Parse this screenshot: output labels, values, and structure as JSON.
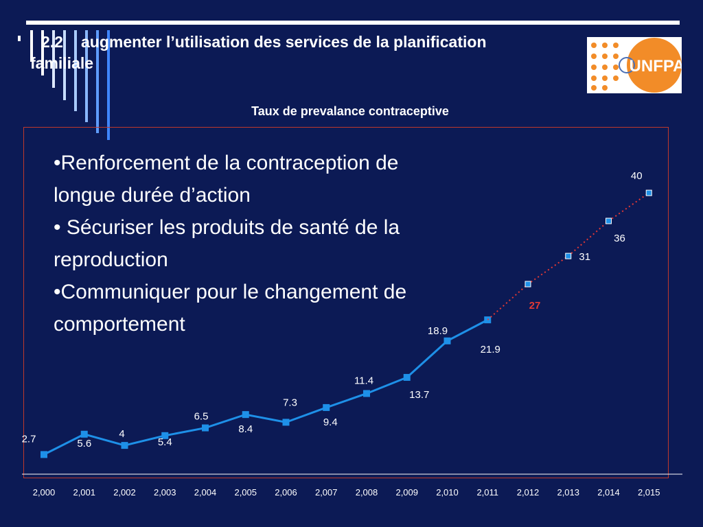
{
  "heading": {
    "number": "2.2",
    "text": "augmenter l’utilisation des services de la planification familiale"
  },
  "logo": {
    "text": "UNFPA"
  },
  "bullets": [
    "•Renforcement de la contraception de longue durée d’action",
    "• Sécuriser les produits de santé de la reproduction",
    "•Communiquer pour le changement de comportement"
  ],
  "chart_data": {
    "type": "line",
    "title": "Taux de prevalance contraceptive",
    "xlabel": "",
    "ylabel": "",
    "x": [
      "2,000",
      "2,001",
      "2,002",
      "2,003",
      "2,004",
      "2,005",
      "2,006",
      "2,007",
      "2,008",
      "2,009",
      "2,010",
      "2,011",
      "2,012",
      "2,013",
      "2,014",
      "2,015"
    ],
    "ylim": [
      0,
      45
    ],
    "series": [
      {
        "style": "solid",
        "color": "#1e90e8",
        "points": [
          {
            "x": "2,000",
            "y": 2.7,
            "label": "2.7"
          },
          {
            "x": "2,001",
            "y": 5.6,
            "label": "5.6"
          },
          {
            "x": "2,002",
            "y": 4,
            "label": "4"
          },
          {
            "x": "2,003",
            "y": 5.4,
            "label": "5.4"
          },
          {
            "x": "2,004",
            "y": 6.5,
            "label": "6.5"
          },
          {
            "x": "2,005",
            "y": 8.4,
            "label": "8.4"
          },
          {
            "x": "2,006",
            "y": 7.3,
            "label": "7.3"
          },
          {
            "x": "2,007",
            "y": 9.4,
            "label": "9.4"
          },
          {
            "x": "2,008",
            "y": 11.4,
            "label": "11.4"
          },
          {
            "x": "2,009",
            "y": 13.7,
            "label": "13.7"
          },
          {
            "x": "2,010",
            "y": 18.9,
            "label": "18.9"
          },
          {
            "x": "2,011",
            "y": 21.9,
            "label": "21.9"
          }
        ]
      },
      {
        "style": "dotted",
        "color": "#e53935",
        "points": [
          {
            "x": "2,011",
            "y": 21.9,
            "label": ""
          },
          {
            "x": "2,012",
            "y": 27,
            "label": "27",
            "label_color": "#e53935"
          },
          {
            "x": "2,013",
            "y": 31,
            "label": "31"
          },
          {
            "x": "2,014",
            "y": 36,
            "label": "36"
          },
          {
            "x": "2,015",
            "y": 40,
            "label": "40"
          }
        ]
      }
    ]
  }
}
